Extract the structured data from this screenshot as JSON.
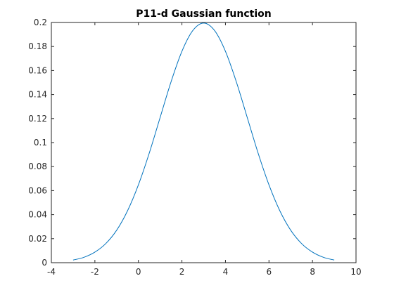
{
  "chart_data": {
    "type": "line",
    "title": "P11-d Gaussian function",
    "xlabel": "",
    "ylabel": "",
    "xlim": [
      -4,
      10
    ],
    "ylim": [
      0,
      0.2
    ],
    "x_ticks": [
      -4,
      -2,
      0,
      2,
      4,
      6,
      8,
      10
    ],
    "x_tick_labels": [
      "-4",
      "-2",
      "0",
      "2",
      "4",
      "6",
      "8",
      "10"
    ],
    "y_ticks": [
      0,
      0.02,
      0.04,
      0.06,
      0.08,
      0.1,
      0.12,
      0.14,
      0.16,
      0.18,
      0.2
    ],
    "y_tick_labels": [
      "0",
      "0.02",
      "0.04",
      "0.06",
      "0.08",
      "0.1",
      "0.12",
      "0.14",
      "0.16",
      "0.18",
      "0.2"
    ],
    "grid": false,
    "legend": "none",
    "series": [
      {
        "color": "#0072BD",
        "x": [
          -3,
          -2.5,
          -2,
          -1.5,
          -1,
          -0.5,
          0,
          0.5,
          1,
          1.5,
          2,
          2.5,
          3,
          3.5,
          4,
          4.5,
          5,
          5.5,
          6,
          6.5,
          7,
          7.5,
          8,
          8.5,
          9
        ],
        "y": [
          0.0022,
          0.0045,
          0.0088,
          0.0159,
          0.027,
          0.0432,
          0.0648,
          0.0913,
          0.121,
          0.1506,
          0.176,
          0.1933,
          0.1995,
          0.1933,
          0.176,
          0.1506,
          0.121,
          0.0913,
          0.0648,
          0.0432,
          0.027,
          0.0159,
          0.0088,
          0.0045,
          0.0022
        ]
      }
    ]
  }
}
